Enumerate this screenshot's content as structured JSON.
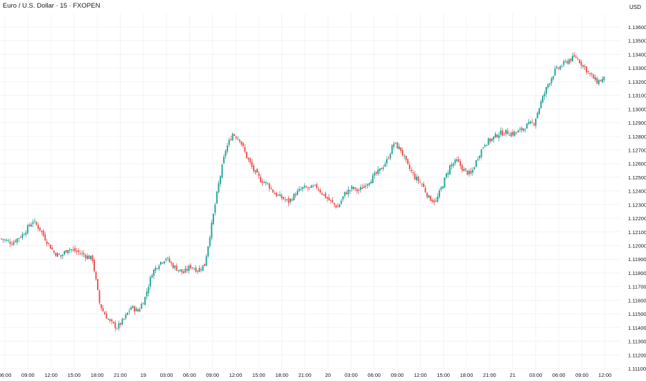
{
  "header": {
    "title": "Euro / U.S. Dollar · 15 · FXOPEN"
  },
  "colors": {
    "up": "#26a69a",
    "down": "#ef5350",
    "grid": "#f0f3fa",
    "text": "#131722"
  },
  "chart_data": {
    "type": "candlestick",
    "title": "Euro / U.S. Dollar · 15 · FXOPEN",
    "currency_label": "USD",
    "ylim": [
      1.111,
      1.137
    ],
    "y_ticks": [
      "1.13600",
      "1.13500",
      "1.13400",
      "1.13300",
      "1.13200",
      "1.13100",
      "1.13000",
      "1.12900",
      "1.12800",
      "1.12700",
      "1.12600",
      "1.12500",
      "1.12400",
      "1.12300",
      "1.12200",
      "1.12100",
      "1.12000",
      "1.11900",
      "1.11800",
      "1.11700",
      "1.11600",
      "1.11500",
      "1.11400",
      "1.11300",
      "1.11200",
      "1.11100"
    ],
    "x_ticks": [
      "06:00",
      "09:00",
      "12:00",
      "15:00",
      "18:00",
      "21:00",
      "19",
      "03:00",
      "06:00",
      "09:00",
      "12:00",
      "15:00",
      "18:00",
      "21:00",
      "20",
      "03:00",
      "06:00",
      "09:00",
      "12:00",
      "15:00",
      "18:00",
      "21:00",
      "21",
      "03:00",
      "06:00",
      "09:00",
      "12:00"
    ],
    "grid": true,
    "close_path": [
      [
        0,
        1.1205
      ],
      [
        6,
        1.1202
      ],
      [
        12,
        1.1208
      ],
      [
        18,
        1.1218
      ],
      [
        22,
        1.1212
      ],
      [
        26,
        1.1203
      ],
      [
        30,
        1.1195
      ],
      [
        34,
        1.1192
      ],
      [
        38,
        1.1198
      ],
      [
        42,
        1.1196
      ],
      [
        46,
        1.1194
      ],
      [
        52,
        1.119
      ],
      [
        56,
        1.1158
      ],
      [
        58,
        1.1152
      ],
      [
        62,
        1.1144
      ],
      [
        66,
        1.114
      ],
      [
        70,
        1.1146
      ],
      [
        74,
        1.1155
      ],
      [
        78,
        1.1152
      ],
      [
        82,
        1.1162
      ],
      [
        86,
        1.118
      ],
      [
        90,
        1.1187
      ],
      [
        94,
        1.1191
      ],
      [
        98,
        1.1185
      ],
      [
        104,
        1.118
      ],
      [
        108,
        1.1185
      ],
      [
        112,
        1.1182
      ],
      [
        116,
        1.1186
      ],
      [
        120,
        1.1215
      ],
      [
        124,
        1.1245
      ],
      [
        128,
        1.127
      ],
      [
        132,
        1.1282
      ],
      [
        136,
        1.1278
      ],
      [
        140,
        1.1265
      ],
      [
        144,
        1.1255
      ],
      [
        148,
        1.1248
      ],
      [
        152,
        1.1245
      ],
      [
        156,
        1.1238
      ],
      [
        160,
        1.1235
      ],
      [
        164,
        1.1232
      ],
      [
        168,
        1.1238
      ],
      [
        172,
        1.1242
      ],
      [
        176,
        1.1242
      ],
      [
        180,
        1.1243
      ],
      [
        184,
        1.1237
      ],
      [
        188,
        1.1232
      ],
      [
        192,
        1.1228
      ],
      [
        196,
        1.1238
      ],
      [
        200,
        1.1242
      ],
      [
        204,
        1.124
      ],
      [
        208,
        1.1245
      ],
      [
        212,
        1.125
      ],
      [
        216,
        1.1255
      ],
      [
        220,
        1.1262
      ],
      [
        224,
        1.1275
      ],
      [
        228,
        1.127
      ],
      [
        232,
        1.1258
      ],
      [
        236,
        1.125
      ],
      [
        240,
        1.1245
      ],
      [
        244,
        1.1235
      ],
      [
        248,
        1.1232
      ],
      [
        252,
        1.1245
      ],
      [
        256,
        1.1258
      ],
      [
        260,
        1.1262
      ],
      [
        264,
        1.1255
      ],
      [
        268,
        1.1252
      ],
      [
        272,
        1.1265
      ],
      [
        276,
        1.1275
      ],
      [
        280,
        1.1278
      ],
      [
        284,
        1.1282
      ],
      [
        288,
        1.1283
      ],
      [
        292,
        1.1282
      ],
      [
        296,
        1.1284
      ],
      [
        300,
        1.1288
      ],
      [
        304,
        1.129
      ],
      [
        308,
        1.1305
      ],
      [
        312,
        1.1318
      ],
      [
        316,
        1.1328
      ],
      [
        320,
        1.1332
      ],
      [
        324,
        1.1336
      ],
      [
        328,
        1.1338
      ],
      [
        332,
        1.1332
      ],
      [
        336,
        1.1325
      ],
      [
        340,
        1.132
      ],
      [
        344,
        1.1322
      ]
    ]
  }
}
